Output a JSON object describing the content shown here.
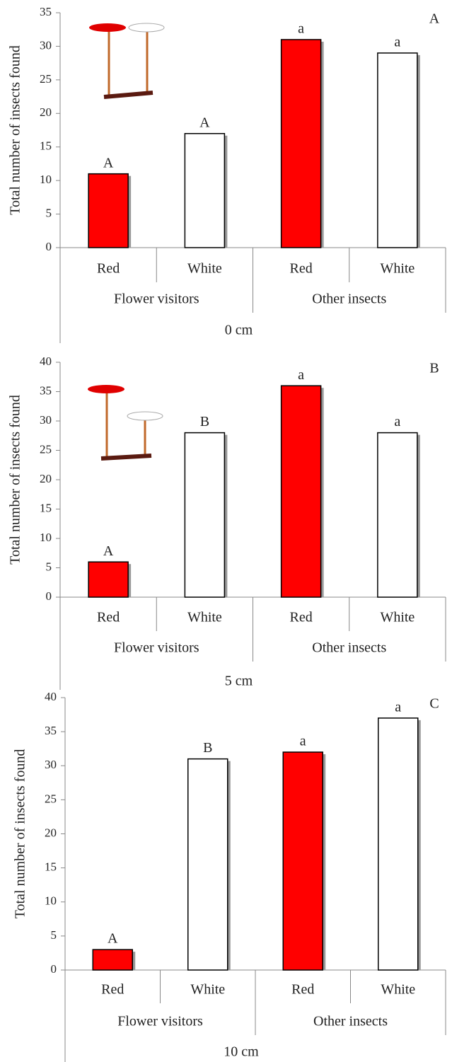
{
  "chart_data": [
    {
      "type": "bar",
      "panel": "A",
      "y_label": "Total number of insects found",
      "x_label": "0 cm",
      "categories": [
        "Red",
        "White",
        "Red",
        "White"
      ],
      "groups": [
        "Flower visitors",
        "Other insects"
      ],
      "values": [
        11,
        17,
        31,
        29
      ],
      "letters": [
        "A",
        "A",
        "a",
        "a"
      ],
      "colors": [
        "#ff0000",
        "#ffffff",
        "#ff0000",
        "#ffffff"
      ],
      "ylim": [
        0,
        35
      ],
      "yticks": [
        0,
        5,
        10,
        15,
        20,
        25,
        30,
        35
      ]
    },
    {
      "type": "bar",
      "panel": "B",
      "y_label": "Total number of insects found",
      "x_label": "5 cm",
      "categories": [
        "Red",
        "White",
        "Red",
        "White"
      ],
      "groups": [
        "Flower visitors",
        "Other insects"
      ],
      "values": [
        6,
        28,
        36,
        28
      ],
      "letters": [
        "A",
        "B",
        "a",
        "a"
      ],
      "colors": [
        "#ff0000",
        "#ffffff",
        "#ff0000",
        "#ffffff"
      ],
      "ylim": [
        0,
        40
      ],
      "yticks": [
        0,
        5,
        10,
        15,
        20,
        25,
        30,
        35,
        40
      ]
    },
    {
      "type": "bar",
      "panel": "C",
      "y_label": "Total number of insects found",
      "x_label": "10 cm",
      "categories": [
        "Red",
        "White",
        "Red",
        "White"
      ],
      "groups": [
        "Flower visitors",
        "Other insects"
      ],
      "values": [
        3,
        31,
        32,
        37
      ],
      "letters": [
        "A",
        "B",
        "a",
        "a"
      ],
      "colors": [
        "#ff0000",
        "#ffffff",
        "#ff0000",
        "#ffffff"
      ],
      "ylim": [
        0,
        40
      ],
      "yticks": [
        0,
        5,
        10,
        15,
        20,
        25,
        30,
        35,
        40
      ]
    }
  ]
}
